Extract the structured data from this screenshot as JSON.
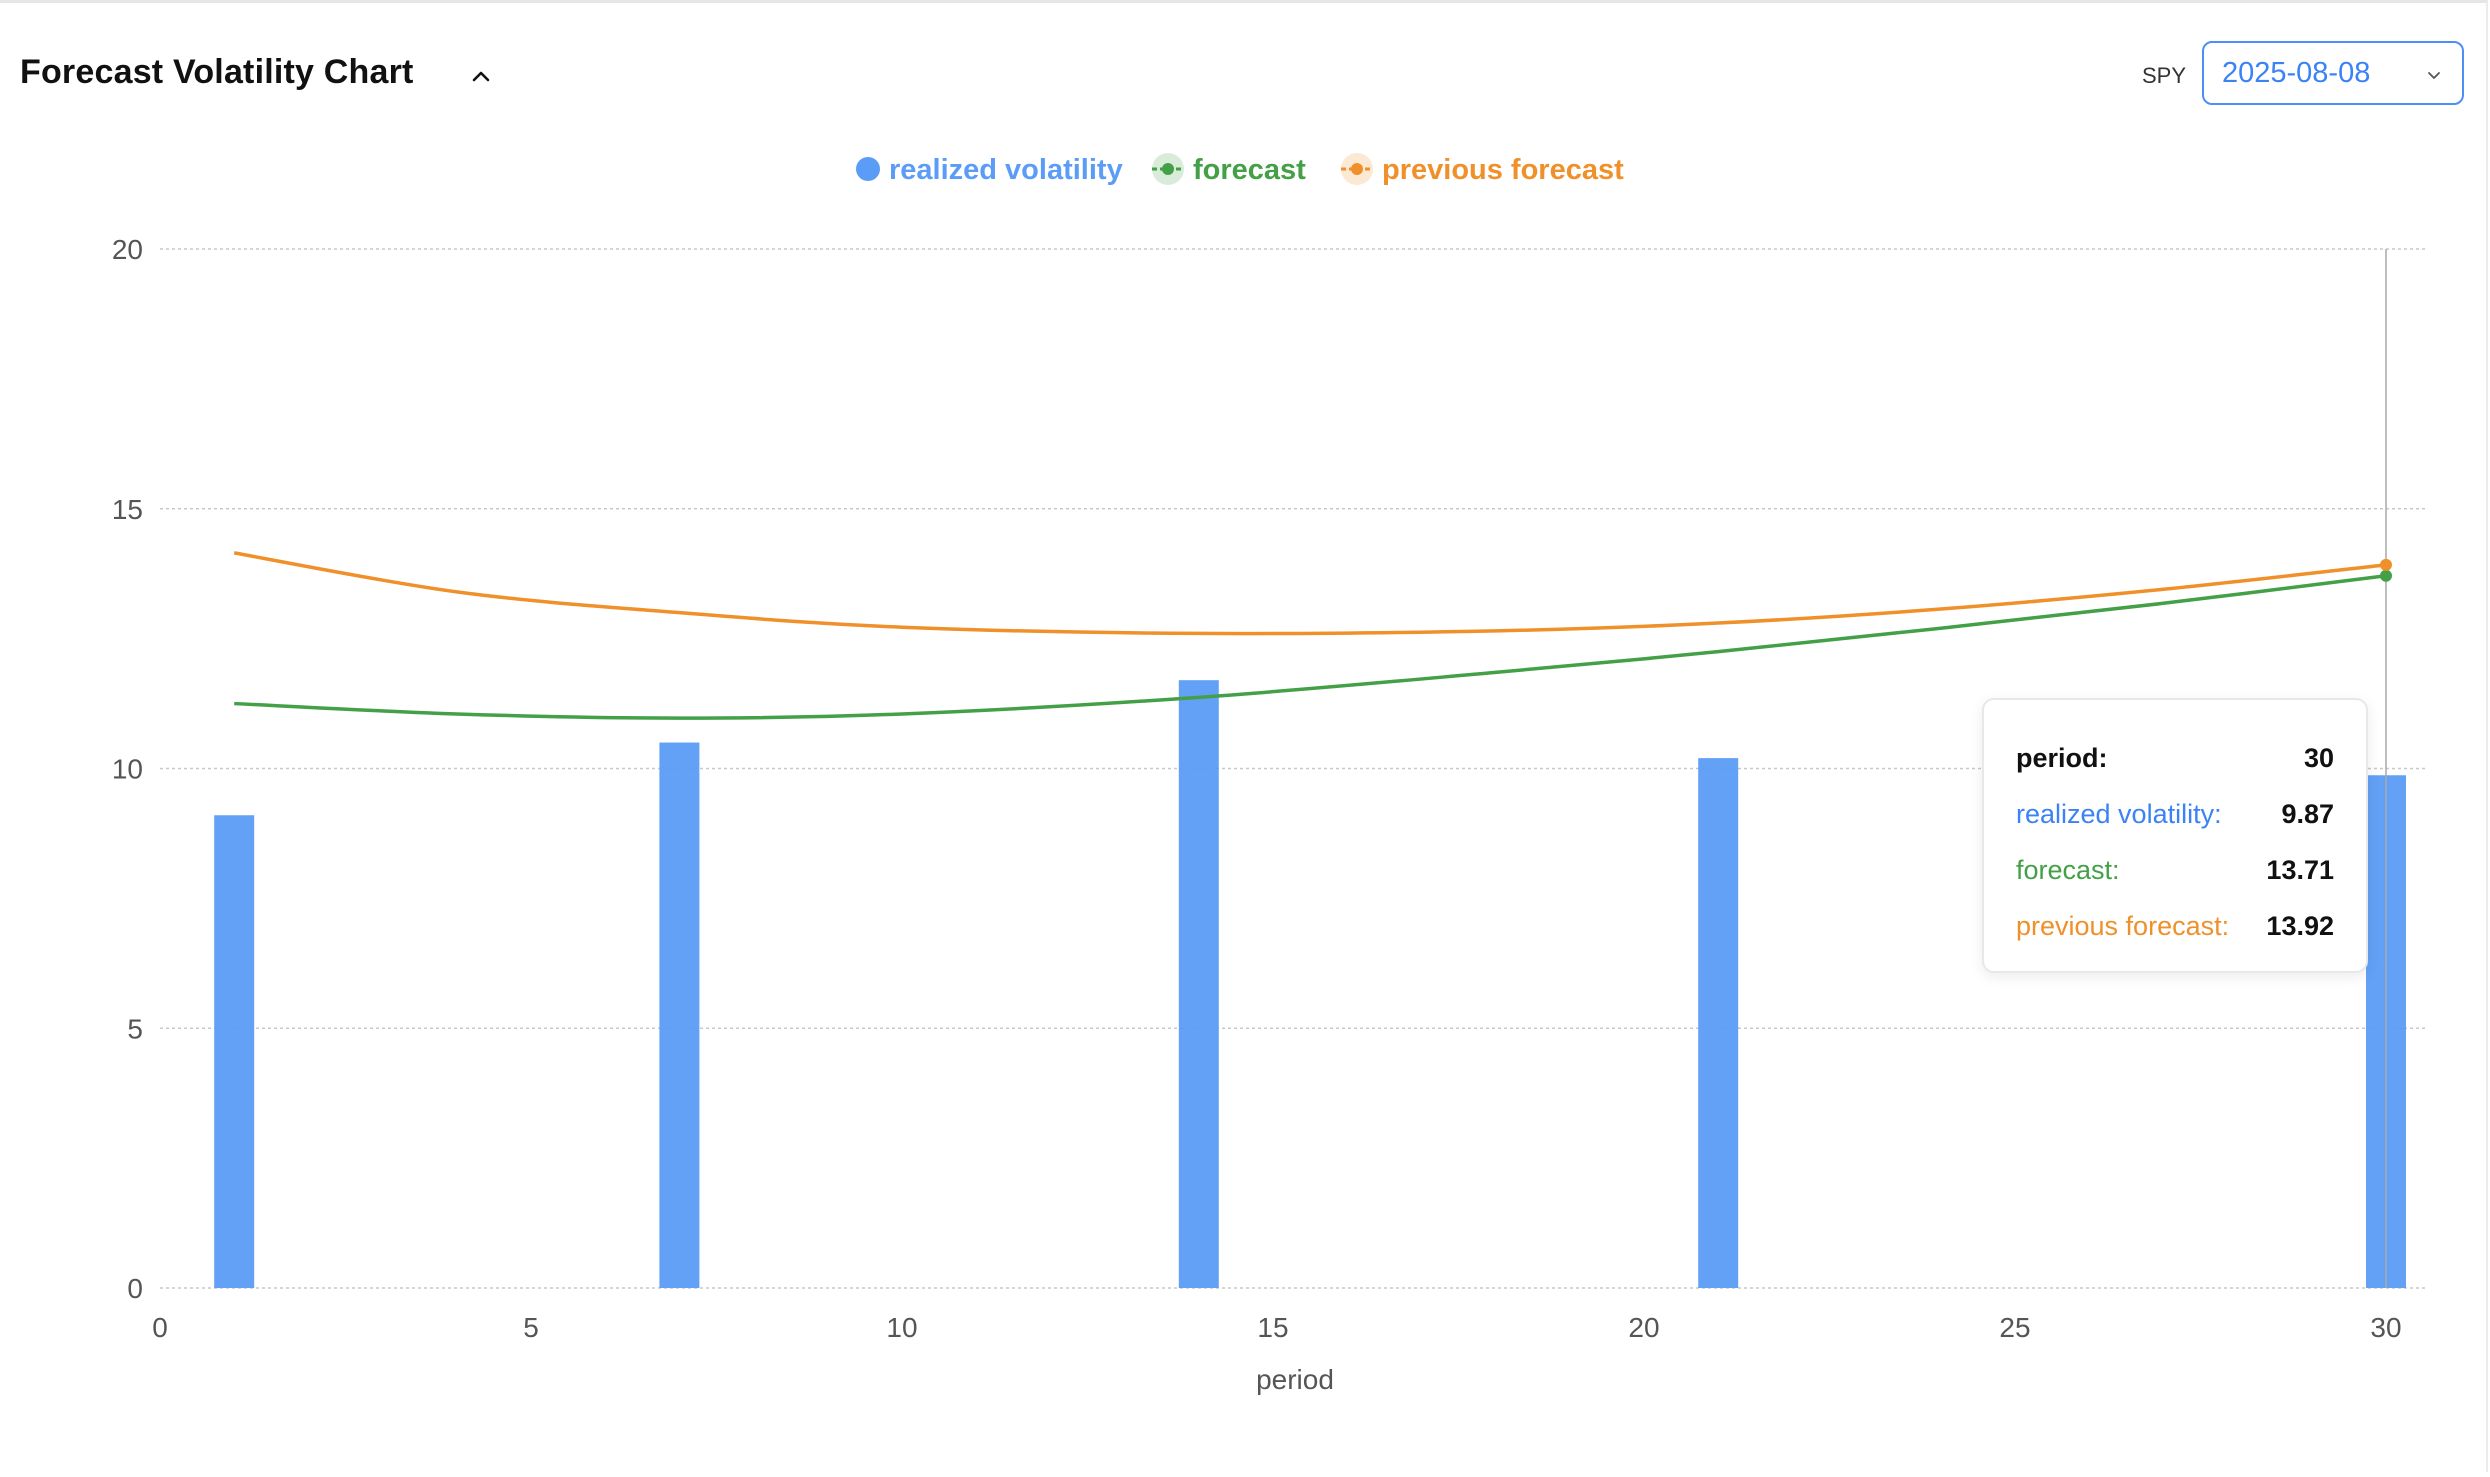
{
  "header": {
    "title": "Forecast Volatility Chart",
    "ticker": "SPY",
    "date_value": "2025-08-08"
  },
  "colors": {
    "realized": "#5b9cf6",
    "forecast": "#43a047",
    "previous": "#f0902a",
    "accent": "#3b82f6"
  },
  "icons": {
    "collapse": "chevron-up-icon",
    "dropdown": "chevron-down-icon"
  },
  "chart_data": {
    "type": "bar",
    "xlabel": "period",
    "ylabel": "",
    "xlim": [
      0,
      30
    ],
    "ylim": [
      0,
      20
    ],
    "x_ticks": [
      0,
      5,
      10,
      15,
      20,
      25,
      30
    ],
    "y_ticks": [
      0,
      5,
      10,
      15,
      20
    ],
    "grid": true,
    "legend_position": "top-center",
    "series": [
      {
        "name": "realized volatility",
        "kind": "bar",
        "x": [
          1,
          7,
          14,
          21,
          30
        ],
        "values": [
          9.1,
          10.5,
          11.7,
          10.2,
          9.87
        ]
      },
      {
        "name": "forecast",
        "kind": "line",
        "x": [
          1,
          4,
          7,
          10,
          14,
          18,
          21,
          24,
          27,
          30
        ],
        "values": [
          11.25,
          11.05,
          10.97,
          11.05,
          11.37,
          11.85,
          12.25,
          12.7,
          13.18,
          13.71
        ]
      },
      {
        "name": "previous forecast",
        "kind": "line",
        "x": [
          1,
          4,
          7,
          10,
          14,
          18,
          21,
          24,
          27,
          30
        ],
        "values": [
          14.15,
          13.4,
          13.0,
          12.72,
          12.6,
          12.65,
          12.8,
          13.07,
          13.45,
          13.92
        ]
      }
    ],
    "tooltip": {
      "period_label": "period:",
      "period_value": "30",
      "realized_label": "realized volatility:",
      "realized_value": "9.87",
      "forecast_label": "forecast:",
      "forecast_value": "13.71",
      "previous_label": "previous forecast:",
      "previous_value": "13.92"
    }
  }
}
